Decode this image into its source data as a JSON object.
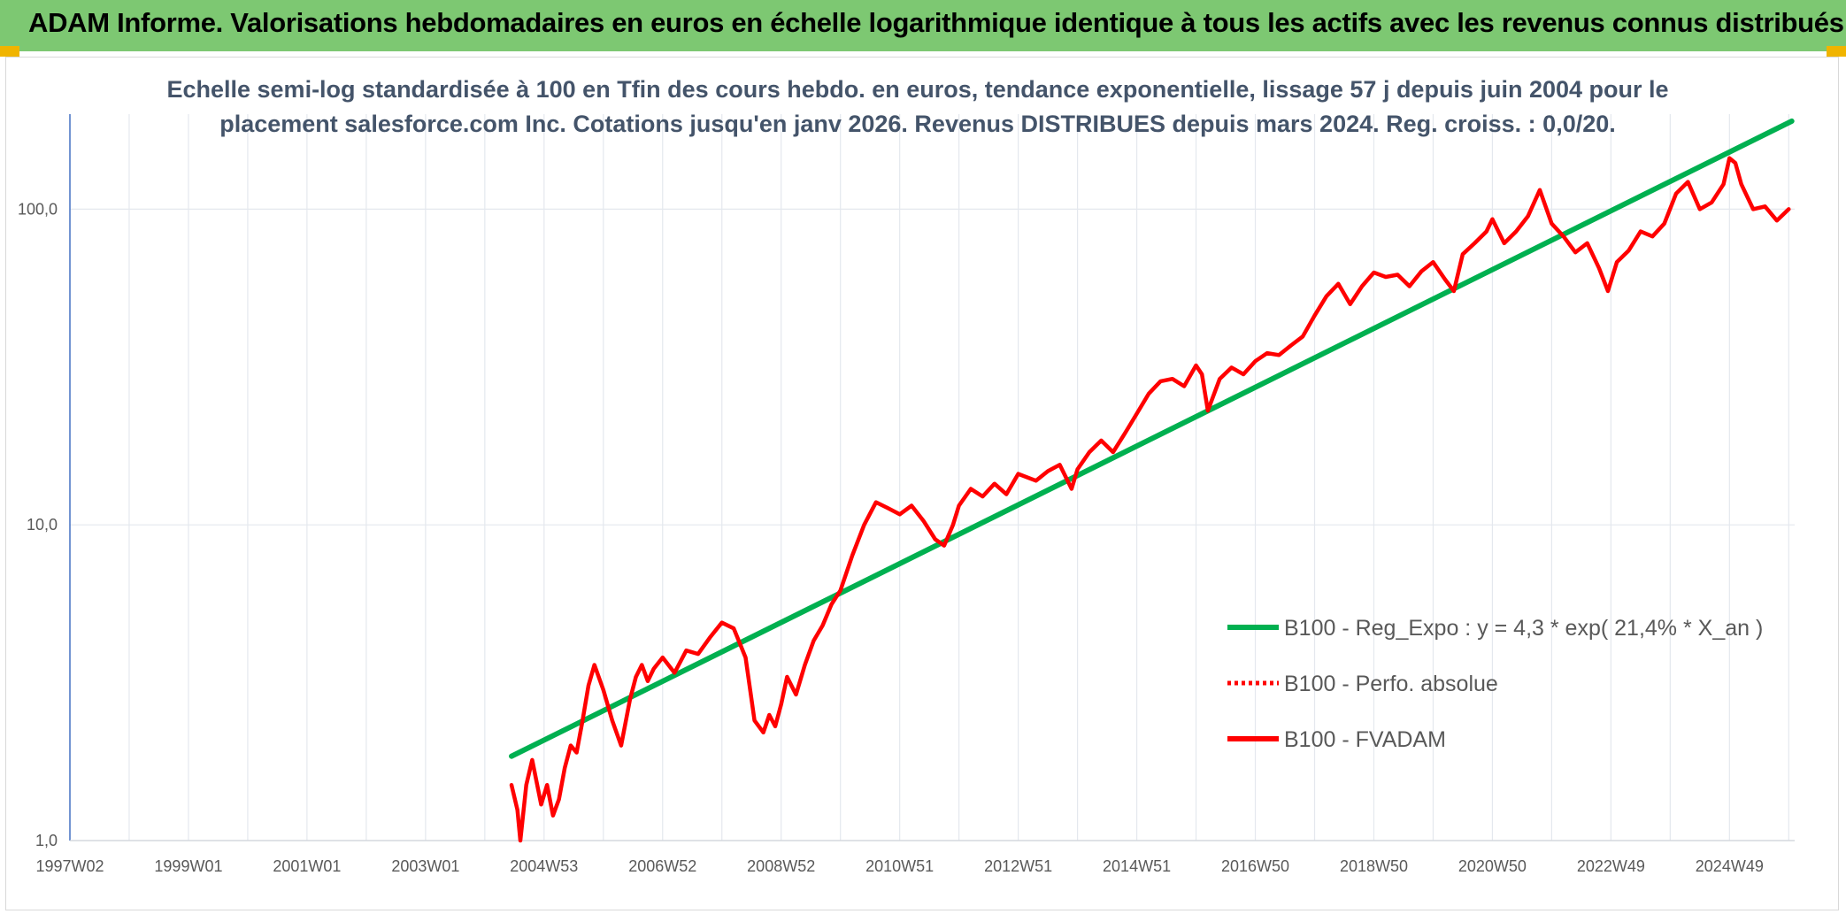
{
  "banner": {
    "title": "ADAM Informe. Valorisations hebdomadaires en euros en échelle logarithmique identique à tous les actifs avec les revenus connus distribués",
    "color": "#7dc872"
  },
  "chart_data": {
    "type": "line",
    "title_lines": [
      "Echelle semi-log standardisée à 100 en Tfin des cours hebdo. en euros, tendance exponentielle, lissage 57 j depuis juin 2004 pour le",
      "placement salesforce.com Inc. Cotations jusqu'en janv 2026. Revenus DISTRIBUES depuis mars 2024. Reg. croiss. : 0,0/20."
    ],
    "y_scale": "log",
    "ylim": [
      1,
      200
    ],
    "y_ticks": [
      {
        "value": 1,
        "label": "1,0"
      },
      {
        "value": 10,
        "label": "10,0"
      },
      {
        "value": 100,
        "label": "100,0"
      }
    ],
    "xlim": [
      1997.0,
      2026.1
    ],
    "x_ticks": [
      {
        "value": 1997.0,
        "label": "1997W02"
      },
      {
        "value": 1999.0,
        "label": "1999W01"
      },
      {
        "value": 2001.0,
        "label": "2001W01"
      },
      {
        "value": 2003.0,
        "label": "2003W01"
      },
      {
        "value": 2005.0,
        "label": "2004W53"
      },
      {
        "value": 2007.0,
        "label": "2006W52"
      },
      {
        "value": 2009.0,
        "label": "2008W52"
      },
      {
        "value": 2011.0,
        "label": "2010W51"
      },
      {
        "value": 2013.0,
        "label": "2012W51"
      },
      {
        "value": 2015.0,
        "label": "2014W51"
      },
      {
        "value": 2017.0,
        "label": "2016W50"
      },
      {
        "value": 2019.0,
        "label": "2018W50"
      },
      {
        "value": 2021.0,
        "label": "2020W50"
      },
      {
        "value": 2023.0,
        "label": "2022W49"
      },
      {
        "value": 2025.0,
        "label": "2024W49"
      }
    ],
    "grid": "vertical and horizontal",
    "legend_position": "bottom-right",
    "series": [
      {
        "name": "B100 - Reg_Expo : y = 4,3 * exp( 21,4% *  X_an )",
        "color": "#00b050",
        "style": "solid",
        "x": [
          2004.45,
          2026.05
        ],
        "y": [
          1.85,
          190
        ]
      },
      {
        "name": "B100 - Perfo. absolue",
        "color": "#ff0000",
        "style": "dotted",
        "x": [],
        "y": []
      },
      {
        "name": "B100 - FVADAM",
        "color": "#ff0000",
        "style": "solid",
        "x": [
          2004.45,
          2004.55,
          2004.6,
          2004.7,
          2004.8,
          2004.95,
          2005.05,
          2005.15,
          2005.25,
          2005.35,
          2005.45,
          2005.55,
          2005.65,
          2005.75,
          2005.85,
          2006.0,
          2006.15,
          2006.3,
          2006.45,
          2006.55,
          2006.65,
          2006.75,
          2006.85,
          2007.0,
          2007.2,
          2007.4,
          2007.6,
          2007.8,
          2008.0,
          2008.2,
          2008.4,
          2008.55,
          2008.7,
          2008.8,
          2008.9,
          2009.0,
          2009.1,
          2009.25,
          2009.4,
          2009.55,
          2009.7,
          2009.85,
          2010.0,
          2010.2,
          2010.4,
          2010.6,
          2010.8,
          2011.0,
          2011.2,
          2011.4,
          2011.6,
          2011.75,
          2011.9,
          2012.0,
          2012.2,
          2012.4,
          2012.6,
          2012.8,
          2013.0,
          2013.3,
          2013.5,
          2013.7,
          2013.9,
          2014.0,
          2014.2,
          2014.4,
          2014.6,
          2014.8,
          2015.0,
          2015.2,
          2015.4,
          2015.6,
          2015.8,
          2016.0,
          2016.1,
          2016.2,
          2016.4,
          2016.6,
          2016.8,
          2017.0,
          2017.2,
          2017.4,
          2017.6,
          2017.8,
          2018.0,
          2018.2,
          2018.4,
          2018.6,
          2018.8,
          2019.0,
          2019.2,
          2019.4,
          2019.6,
          2019.8,
          2020.0,
          2020.2,
          2020.35,
          2020.5,
          2020.7,
          2020.9,
          2021.0,
          2021.2,
          2021.4,
          2021.6,
          2021.8,
          2022.0,
          2022.2,
          2022.4,
          2022.6,
          2022.8,
          2022.95,
          2023.1,
          2023.3,
          2023.5,
          2023.7,
          2023.9,
          2024.1,
          2024.3,
          2024.5,
          2024.7,
          2024.9,
          2025.0,
          2025.1,
          2025.2,
          2025.4,
          2025.6,
          2025.8,
          2026.0
        ],
        "y": [
          1.5,
          1.25,
          1.0,
          1.5,
          1.8,
          1.3,
          1.5,
          1.2,
          1.35,
          1.7,
          2.0,
          1.9,
          2.4,
          3.1,
          3.6,
          3.0,
          2.4,
          2.0,
          2.8,
          3.3,
          3.6,
          3.2,
          3.5,
          3.8,
          3.4,
          4.0,
          3.9,
          4.4,
          4.9,
          4.7,
          3.8,
          2.4,
          2.2,
          2.5,
          2.3,
          2.7,
          3.3,
          2.9,
          3.6,
          4.3,
          4.8,
          5.6,
          6.2,
          8.0,
          10.0,
          11.8,
          11.3,
          10.8,
          11.5,
          10.3,
          9.0,
          8.6,
          10.0,
          11.5,
          13.0,
          12.3,
          13.5,
          12.5,
          14.5,
          13.8,
          14.8,
          15.5,
          13.0,
          15.0,
          17.0,
          18.5,
          17.0,
          19.5,
          22.5,
          26.0,
          28.5,
          29.0,
          27.5,
          32.0,
          30.0,
          23.0,
          29.0,
          31.5,
          30.0,
          33.0,
          35.0,
          34.5,
          37.0,
          39.5,
          46.0,
          53.0,
          58.0,
          50.0,
          57.0,
          63.0,
          61.0,
          62.0,
          57.0,
          63.5,
          68.0,
          60.0,
          55.0,
          72.0,
          78.0,
          85.0,
          93.0,
          78.0,
          85.0,
          95.0,
          115.0,
          90.0,
          82.0,
          73.0,
          78.0,
          65.0,
          55.0,
          68.0,
          74.0,
          85.0,
          82.0,
          90.0,
          112.0,
          122.0,
          100.0,
          105.0,
          120.0,
          145.0,
          140.0,
          120.0,
          100.0,
          102.0,
          92.0,
          100.0
        ]
      }
    ]
  }
}
